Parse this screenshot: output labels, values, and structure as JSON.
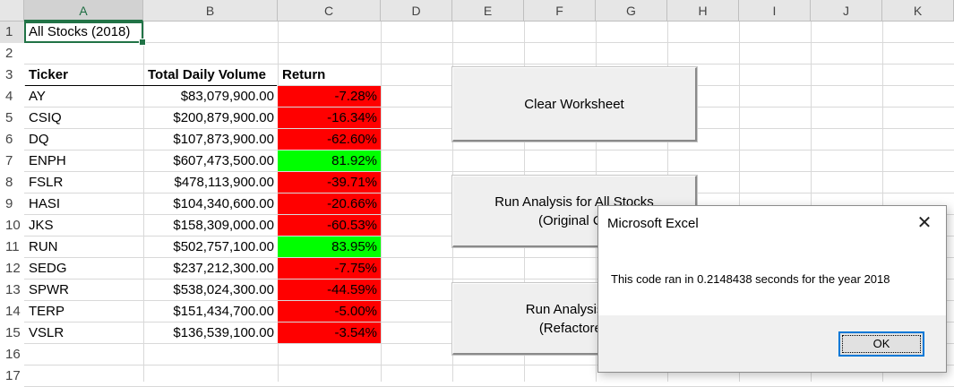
{
  "columns": [
    "A",
    "B",
    "C",
    "D",
    "E",
    "F",
    "G",
    "H",
    "I",
    "J",
    "K"
  ],
  "rows": [
    "1",
    "2",
    "3",
    "4",
    "5",
    "6",
    "7",
    "8",
    "9",
    "10",
    "11",
    "12",
    "13",
    "14",
    "15",
    "16",
    "17"
  ],
  "title_cell": "All Stocks (2018)",
  "table": {
    "headers": [
      "Ticker",
      "Total Daily Volume",
      "Return"
    ],
    "rows": [
      {
        "ticker": "AY",
        "volume": "$83,079,900.00",
        "ret": "-7.28%",
        "color": "#ff0000"
      },
      {
        "ticker": "CSIQ",
        "volume": "$200,879,900.00",
        "ret": "-16.34%",
        "color": "#ff0000"
      },
      {
        "ticker": "DQ",
        "volume": "$107,873,900.00",
        "ret": "-62.60%",
        "color": "#ff0000"
      },
      {
        "ticker": "ENPH",
        "volume": "$607,473,500.00",
        "ret": "81.92%",
        "color": "#00ff00"
      },
      {
        "ticker": "FSLR",
        "volume": "$478,113,900.00",
        "ret": "-39.71%",
        "color": "#ff0000"
      },
      {
        "ticker": "HASI",
        "volume": "$104,340,600.00",
        "ret": "-20.66%",
        "color": "#ff0000"
      },
      {
        "ticker": "JKS",
        "volume": "$158,309,000.00",
        "ret": "-60.53%",
        "color": "#ff0000"
      },
      {
        "ticker": "RUN",
        "volume": "$502,757,100.00",
        "ret": "83.95%",
        "color": "#00ff00"
      },
      {
        "ticker": "SEDG",
        "volume": "$237,212,300.00",
        "ret": "-7.75%",
        "color": "#ff0000"
      },
      {
        "ticker": "SPWR",
        "volume": "$538,024,300.00",
        "ret": "-44.59%",
        "color": "#ff0000"
      },
      {
        "ticker": "TERP",
        "volume": "$151,434,700.00",
        "ret": "-5.00%",
        "color": "#ff0000"
      },
      {
        "ticker": "VSLR",
        "volume": "$136,539,100.00",
        "ret": "-3.54%",
        "color": "#ff0000"
      }
    ]
  },
  "buttons": {
    "clear": "Clear Worksheet",
    "run_original_line1": "Run Analysis for All Stocks",
    "run_original_line2": "(Original Co",
    "run_refactored_line1": "Run Analysis for",
    "run_refactored_line2": "(Refactored"
  },
  "dialog": {
    "title": "Microsoft Excel",
    "close": "✕",
    "message": "This code ran in 0.2148438 seconds for the year 2018",
    "ok": "OK"
  }
}
